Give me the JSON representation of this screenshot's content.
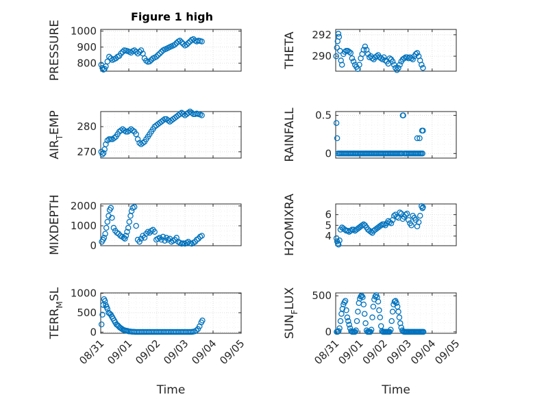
{
  "title": "Figure 1 high",
  "colors": {
    "marker": "#0072BD",
    "axis": "#262626",
    "grid": "#d8d8d8"
  },
  "chart_data": [
    {
      "type": "scatter",
      "panel": "top-left",
      "ylabel": "PRESSURE",
      "ylabel_sub": "",
      "yticks": [
        "800",
        "900",
        "1000"
      ],
      "ytick_values": [
        800,
        900,
        1000
      ],
      "ylim": [
        750,
        1010
      ],
      "xlim": [
        0,
        3.72
      ],
      "x": [
        0.02,
        0.06,
        0.1,
        0.14,
        0.18,
        0.24,
        0.3,
        0.36,
        0.42,
        0.48,
        0.54,
        0.6,
        0.66,
        0.72,
        0.78,
        0.84,
        0.9,
        0.96,
        1.02,
        1.08,
        1.14,
        1.2,
        1.26,
        1.32,
        1.38,
        1.44,
        1.5,
        1.56,
        1.62,
        1.68,
        1.74,
        1.8,
        1.86,
        1.92,
        1.98,
        2.04,
        2.1,
        2.16,
        2.22,
        2.28,
        2.34,
        2.4,
        2.46,
        2.52,
        2.58,
        2.64,
        2.7,
        2.76,
        2.82,
        2.88,
        2.94,
        3.0,
        3.06,
        3.12,
        3.18,
        3.24,
        3.3,
        3.36,
        3.42,
        3.48,
        3.54,
        3.6
      ],
      "y": [
        790,
        770,
        760,
        765,
        780,
        810,
        840,
        830,
        820,
        825,
        830,
        840,
        845,
        860,
        870,
        880,
        878,
        875,
        870,
        865,
        875,
        880,
        870,
        860,
        870,
        880,
        860,
        830,
        815,
        808,
        810,
        820,
        830,
        835,
        840,
        850,
        860,
        870,
        880,
        885,
        890,
        895,
        900,
        905,
        910,
        915,
        925,
        935,
        940,
        930,
        920,
        910,
        915,
        925,
        935,
        945,
        950,
        940,
        935,
        940,
        938,
        935
      ]
    },
    {
      "type": "scatter",
      "panel": "top-right",
      "ylabel": "THETA",
      "ylabel_sub": "",
      "yticks": [
        "290",
        "292"
      ],
      "ytick_values": [
        290,
        292
      ],
      "ylim": [
        288.6,
        292.5
      ],
      "xlim": [
        0,
        3.72
      ],
      "x": [
        0.02,
        0.05,
        0.08,
        0.11,
        0.14,
        0.18,
        0.22,
        0.26,
        0.32,
        0.38,
        0.44,
        0.5,
        0.56,
        0.62,
        0.68,
        0.74,
        0.8,
        0.86,
        0.92,
        0.98,
        1.04,
        1.1,
        1.16,
        1.22,
        1.28,
        1.34,
        1.4,
        1.46,
        1.52,
        1.58,
        1.64,
        1.7,
        1.76,
        1.82,
        1.88,
        1.94,
        2.0,
        2.06,
        2.12,
        2.18,
        2.24,
        2.3,
        2.36,
        2.42,
        2.48,
        2.54,
        2.6,
        2.66,
        2.72,
        2.78,
        2.84,
        2.9,
        2.96,
        3.02,
        3.08,
        3.14,
        3.2,
        3.26,
        3.32,
        3.38,
        3.44,
        3.5,
        3.56,
        3.62
      ],
      "y": [
        290.0,
        290.8,
        291.4,
        292.1,
        291.8,
        290.5,
        289.6,
        289.2,
        290.2,
        290.4,
        290.5,
        290.5,
        290.4,
        290.3,
        289.8,
        289.5,
        289.2,
        289.0,
        288.8,
        289.2,
        289.8,
        290.2,
        290.6,
        290.9,
        290.6,
        290.2,
        289.9,
        290.0,
        289.8,
        289.7,
        289.9,
        290.0,
        290.1,
        289.9,
        289.8,
        289.7,
        289.9,
        289.6,
        289.5,
        289.3,
        289.8,
        289.7,
        289.5,
        289.2,
        288.9,
        288.7,
        288.9,
        289.2,
        289.5,
        289.7,
        289.8,
        289.9,
        289.9,
        289.8,
        289.9,
        289.8,
        289.7,
        290.0,
        290.2,
        290.3,
        290.0,
        289.6,
        289.2,
        288.9
      ]
    },
    {
      "type": "scatter",
      "panel": "row2-left",
      "ylabel": "AIR",
      "ylabel_sub": "T",
      "ylabel_rest": "EMP",
      "yticks": [
        "270",
        "280"
      ],
      "ytick_values": [
        270,
        280
      ],
      "ylim": [
        267.5,
        286
      ],
      "xlim": [
        0,
        3.72
      ],
      "x": [
        0.02,
        0.06,
        0.1,
        0.14,
        0.18,
        0.24,
        0.3,
        0.36,
        0.42,
        0.48,
        0.54,
        0.6,
        0.66,
        0.72,
        0.78,
        0.84,
        0.9,
        0.96,
        1.02,
        1.08,
        1.14,
        1.2,
        1.26,
        1.32,
        1.38,
        1.44,
        1.5,
        1.56,
        1.62,
        1.68,
        1.74,
        1.8,
        1.86,
        1.92,
        1.98,
        2.04,
        2.1,
        2.16,
        2.22,
        2.28,
        2.34,
        2.4,
        2.46,
        2.52,
        2.58,
        2.64,
        2.7,
        2.76,
        2.82,
        2.88,
        2.94,
        3.0,
        3.06,
        3.12,
        3.18,
        3.24,
        3.3,
        3.36,
        3.42,
        3.48,
        3.54,
        3.6
      ],
      "y": [
        270,
        269,
        269.5,
        271,
        273,
        274.5,
        275,
        275,
        275,
        275.5,
        276,
        277,
        278,
        278.5,
        279,
        278.5,
        278,
        278,
        278.5,
        279,
        278.5,
        278,
        277,
        275,
        273.5,
        273,
        273.5,
        274,
        275,
        276,
        277,
        278,
        279,
        280,
        280.5,
        281,
        281.5,
        282,
        282.5,
        283,
        283,
        282.5,
        282,
        282.5,
        283,
        283.5,
        284,
        284.5,
        285,
        285.5,
        285,
        284.5,
        285,
        285.5,
        286,
        285.5,
        285,
        285,
        285.2,
        285,
        284.8,
        284.5
      ]
    },
    {
      "type": "scatter",
      "panel": "row2-right",
      "ylabel": "RAINFALL",
      "ylabel_sub": "",
      "yticks": [
        "0",
        "0.5"
      ],
      "ytick_values": [
        0,
        0.5
      ],
      "ylim": [
        -0.06,
        0.55
      ],
      "xlim": [
        0,
        3.72
      ],
      "x": [
        0.03,
        0.06,
        0.1,
        0.15,
        0.2,
        0.25,
        0.3,
        0.35,
        0.4,
        0.45,
        0.5,
        0.55,
        0.6,
        0.65,
        0.7,
        0.75,
        0.8,
        0.85,
        0.9,
        0.95,
        1.0,
        1.05,
        1.1,
        1.15,
        1.2,
        1.25,
        1.3,
        1.35,
        1.4,
        1.45,
        1.5,
        1.55,
        1.6,
        1.65,
        1.7,
        1.75,
        1.8,
        1.85,
        1.9,
        1.95,
        2.0,
        2.05,
        2.1,
        2.15,
        2.2,
        2.25,
        2.3,
        2.35,
        2.4,
        2.45,
        2.5,
        2.55,
        2.6,
        2.65,
        2.7,
        2.75,
        2.78,
        2.8,
        2.85,
        2.9,
        2.95,
        3.0,
        3.05,
        3.1,
        3.15,
        3.2,
        3.25,
        3.3,
        3.35,
        3.4,
        3.45,
        3.5,
        3.55,
        3.6,
        3.38,
        3.48,
        3.58,
        3.62
      ],
      "y": [
        0.4,
        0.2,
        0,
        0,
        0,
        0,
        0,
        0,
        0,
        0,
        0,
        0,
        0,
        0,
        0,
        0,
        0,
        0,
        0,
        0,
        0,
        0,
        0,
        0,
        0,
        0,
        0,
        0,
        0,
        0,
        0,
        0,
        0,
        0,
        0,
        0,
        0,
        0,
        0,
        0,
        0,
        0,
        0,
        0,
        0,
        0,
        0,
        0,
        0,
        0,
        0,
        0,
        0,
        0,
        0,
        0,
        0.5,
        0.5,
        0,
        0,
        0,
        0,
        0,
        0,
        0,
        0,
        0,
        0,
        0,
        0,
        0,
        0,
        0,
        0,
        0.2,
        0.2,
        0.3,
        0.3
      ]
    },
    {
      "type": "scatter",
      "panel": "row3-left",
      "ylabel": "MIXDEPTH",
      "ylabel_sub": "",
      "yticks": [
        "0",
        "1000",
        "2000"
      ],
      "ytick_values": [
        0,
        1000,
        2000
      ],
      "ylim": [
        0,
        2100
      ],
      "xlim": [
        0,
        3.72
      ],
      "x": [
        0.04,
        0.08,
        0.12,
        0.16,
        0.2,
        0.24,
        0.28,
        0.32,
        0.36,
        0.4,
        0.46,
        0.52,
        0.58,
        0.64,
        0.7,
        0.76,
        0.82,
        0.86,
        0.9,
        0.94,
        0.98,
        1.02,
        1.06,
        1.1,
        1.14,
        1.2,
        1.26,
        1.32,
        1.38,
        1.44,
        1.5,
        1.56,
        1.62,
        1.68,
        1.74,
        1.8,
        1.86,
        1.92,
        1.98,
        2.04,
        2.1,
        2.16,
        2.22,
        2.28,
        2.34,
        2.4,
        2.46,
        2.52,
        2.58,
        2.64,
        2.7,
        2.76,
        2.82,
        2.88,
        2.94,
        3.0,
        3.06,
        3.12,
        3.18,
        3.24,
        3.3,
        3.36,
        3.42,
        3.48,
        3.54,
        3.6
      ],
      "y": [
        200,
        300,
        400,
        600,
        900,
        1200,
        1500,
        1800,
        1900,
        1400,
        900,
        750,
        650,
        600,
        500,
        450,
        400,
        350,
        500,
        700,
        900,
        1200,
        1500,
        1750,
        1900,
        1950,
        1000,
        300,
        200,
        350,
        500,
        400,
        600,
        700,
        650,
        750,
        800,
        700,
        300,
        350,
        400,
        300,
        450,
        250,
        400,
        300,
        350,
        200,
        250,
        300,
        400,
        200,
        150,
        100,
        120,
        100,
        150,
        200,
        120,
        100,
        150,
        200,
        300,
        350,
        450,
        500
      ]
    },
    {
      "type": "scatter",
      "panel": "row3-right",
      "ylabel": "H2OMIXRA",
      "ylabel_sub": "",
      "yticks": [
        "4",
        "5",
        "6"
      ],
      "ytick_values": [
        4,
        5,
        6
      ],
      "ylim": [
        3.1,
        7.0
      ],
      "xlim": [
        0,
        3.72
      ],
      "x": [
        0.03,
        0.06,
        0.09,
        0.12,
        0.16,
        0.2,
        0.26,
        0.32,
        0.38,
        0.44,
        0.5,
        0.56,
        0.62,
        0.68,
        0.74,
        0.8,
        0.86,
        0.92,
        0.98,
        1.04,
        1.1,
        1.16,
        1.22,
        1.28,
        1.34,
        1.4,
        1.46,
        1.52,
        1.58,
        1.64,
        1.7,
        1.76,
        1.82,
        1.88,
        1.94,
        2.0,
        2.06,
        2.12,
        2.18,
        2.24,
        2.3,
        2.36,
        2.42,
        2.48,
        2.54,
        2.6,
        2.66,
        2.72,
        2.78,
        2.84,
        2.9,
        2.96,
        3.02,
        3.08,
        3.14,
        3.2,
        3.26,
        3.32,
        3.38,
        3.44,
        3.5,
        3.56,
        3.6,
        3.62
      ],
      "y": [
        3.8,
        3.5,
        3.3,
        3.2,
        3.6,
        4.6,
        4.8,
        4.7,
        4.6,
        4.5,
        4.5,
        4.4,
        4.5,
        4.6,
        4.6,
        4.5,
        4.6,
        4.7,
        4.8,
        4.9,
        5.0,
        5.1,
        5.0,
        4.8,
        4.6,
        4.5,
        4.4,
        4.3,
        4.5,
        4.6,
        4.7,
        4.8,
        4.9,
        5.0,
        5.1,
        5.1,
        5.0,
        5.2,
        5.4,
        5.3,
        5.2,
        5.5,
        5.9,
        6.0,
        5.8,
        5.7,
        6.2,
        6.1,
        5.6,
        5.8,
        6.0,
        6.1,
        5.5,
        5.2,
        5.0,
        5.9,
        5.7,
        5.5,
        4.9,
        5.3,
        5.9,
        6.8,
        6.6,
        6.7
      ]
    },
    {
      "type": "scatter",
      "panel": "bottom-left",
      "ylabel": "TERR",
      "ylabel_sub": "M",
      "ylabel_rest": "SL",
      "yticks": [
        "0",
        "500",
        "1000"
      ],
      "ytick_values": [
        0,
        500,
        1000
      ],
      "ylim": [
        -30,
        1010
      ],
      "xlim": [
        0,
        5.0
      ],
      "xticks": [
        "08/31",
        "09/01",
        "09/02",
        "09/03",
        "09/04",
        "09/05"
      ],
      "xtick_values": [
        0,
        1,
        2,
        3,
        4,
        5
      ],
      "xlabel": "Time",
      "x": [
        0.03,
        0.06,
        0.09,
        0.12,
        0.15,
        0.18,
        0.21,
        0.24,
        0.28,
        0.32,
        0.36,
        0.4,
        0.44,
        0.48,
        0.52,
        0.56,
        0.6,
        0.64,
        0.68,
        0.72,
        0.76,
        0.8,
        0.84,
        0.88,
        0.92,
        0.96,
        1.0,
        1.06,
        1.12,
        1.18,
        1.24,
        1.3,
        1.36,
        1.42,
        1.48,
        1.54,
        1.6,
        1.66,
        1.72,
        1.78,
        1.84,
        1.9,
        1.96,
        2.02,
        2.08,
        2.14,
        2.2,
        2.26,
        2.32,
        2.38,
        2.44,
        2.5,
        2.56,
        2.62,
        2.68,
        2.74,
        2.8,
        2.86,
        2.92,
        2.98,
        3.04,
        3.1,
        3.16,
        3.22,
        3.28,
        3.34,
        3.4,
        3.46,
        3.52,
        3.58,
        3.62
      ],
      "y": [
        200,
        450,
        700,
        850,
        800,
        700,
        650,
        600,
        500,
        480,
        450,
        400,
        350,
        300,
        250,
        200,
        180,
        150,
        120,
        100,
        80,
        60,
        50,
        40,
        35,
        30,
        20,
        15,
        10,
        8,
        5,
        5,
        5,
        5,
        5,
        5,
        5,
        5,
        5,
        5,
        5,
        5,
        5,
        5,
        5,
        5,
        5,
        5,
        5,
        5,
        5,
        5,
        5,
        5,
        5,
        5,
        5,
        5,
        5,
        5,
        5,
        5,
        5,
        5,
        10,
        20,
        40,
        80,
        150,
        250,
        300
      ]
    },
    {
      "type": "scatter",
      "panel": "bottom-right",
      "ylabel": "SUN",
      "ylabel_sub": "F",
      "ylabel_rest": "LUX",
      "yticks": [
        "0",
        "500"
      ],
      "ytick_values": [
        0,
        500
      ],
      "ylim": [
        -20,
        540
      ],
      "xlim": [
        0,
        5.0
      ],
      "xticks": [
        "08/31",
        "09/01",
        "09/02",
        "09/03",
        "09/04",
        "09/05"
      ],
      "xtick_values": [
        0,
        1,
        2,
        3,
        4,
        5
      ],
      "xlabel": "Time",
      "x": [
        0.04,
        0.08,
        0.12,
        0.16,
        0.2,
        0.24,
        0.28,
        0.32,
        0.36,
        0.4,
        0.44,
        0.48,
        0.52,
        0.56,
        0.6,
        0.64,
        0.68,
        0.72,
        0.76,
        0.8,
        0.84,
        0.88,
        0.92,
        0.96,
        1.0,
        1.04,
        1.08,
        1.12,
        1.16,
        1.2,
        1.24,
        1.28,
        1.32,
        1.36,
        1.4,
        1.44,
        1.48,
        1.52,
        1.56,
        1.6,
        1.64,
        1.68,
        1.72,
        1.76,
        1.8,
        1.84,
        1.88,
        1.92,
        1.96,
        2.0,
        2.04,
        2.08,
        2.12,
        2.16,
        2.2,
        2.24,
        2.28,
        2.32,
        2.36,
        2.4,
        2.44,
        2.48,
        2.52,
        2.56,
        2.6,
        2.64,
        2.68,
        2.72,
        2.76,
        2.8,
        2.84,
        2.88,
        2.92,
        2.96,
        3.0,
        3.04,
        3.08,
        3.12,
        3.16,
        3.2,
        3.24,
        3.28,
        3.32,
        3.36,
        3.4,
        3.44,
        3.48,
        3.52,
        3.56,
        3.6,
        3.64
      ],
      "y": [
        0,
        0,
        10,
        50,
        150,
        250,
        320,
        380,
        410,
        430,
        300,
        200,
        150,
        100,
        50,
        10,
        0,
        0,
        0,
        0,
        20,
        150,
        280,
        400,
        460,
        490,
        500,
        480,
        380,
        250,
        120,
        20,
        0,
        0,
        0,
        0,
        30,
        200,
        350,
        450,
        490,
        510,
        480,
        420,
        300,
        200,
        80,
        10,
        0,
        0,
        0,
        0,
        0,
        0,
        0,
        0,
        30,
        150,
        280,
        380,
        420,
        430,
        400,
        350,
        280,
        200,
        120,
        60,
        20,
        5,
        0,
        0,
        0,
        0,
        0,
        0,
        0,
        0,
        0,
        0,
        0,
        0,
        0,
        0,
        0,
        0,
        0,
        0,
        0,
        0,
        0
      ]
    }
  ]
}
